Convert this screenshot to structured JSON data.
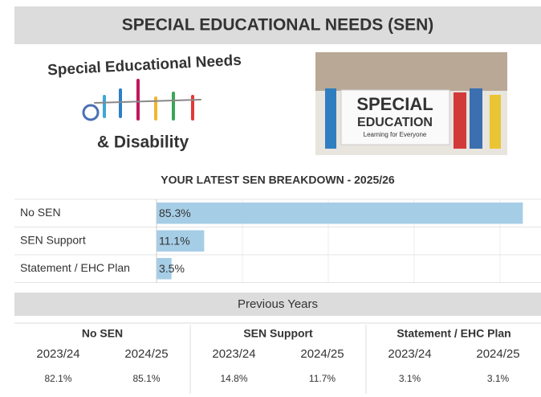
{
  "header": {
    "title": "SPECIAL EDUCATIONAL NEEDS (SEN)"
  },
  "images": {
    "logo": {
      "line1": "Special Educational Needs",
      "line2": "& Disability"
    },
    "photo": {
      "line1": "SPECIAL",
      "line2": "EDUCATION",
      "caption": "Learning for Everyone"
    }
  },
  "chart_data": {
    "type": "hbar",
    "title": "YOUR LATEST SEN BREAKDOWN - 2025/26",
    "categories": [
      "No SEN",
      "SEN Support",
      "Statement / EHC Plan"
    ],
    "values": [
      85.3,
      11.1,
      3.5
    ],
    "value_labels": [
      "85.3%",
      "11.1%",
      "3.5%"
    ],
    "color": "#a5cde6",
    "xlim": [
      0,
      100
    ],
    "xticks": [
      0,
      20,
      40,
      60,
      80,
      100
    ],
    "grid": true
  },
  "table": {
    "title": "Previous Years",
    "groups": [
      {
        "name": "No SEN",
        "years": [
          "2023/24",
          "2024/25"
        ],
        "values": [
          "82.1%",
          "85.1%"
        ]
      },
      {
        "name": "SEN Support",
        "years": [
          "2023/24",
          "2024/25"
        ],
        "values": [
          "14.8%",
          "11.7%"
        ]
      },
      {
        "name": "Statement / EHC Plan",
        "years": [
          "2023/24",
          "2024/25"
        ],
        "values": [
          "3.1%",
          "3.1%"
        ]
      }
    ]
  }
}
